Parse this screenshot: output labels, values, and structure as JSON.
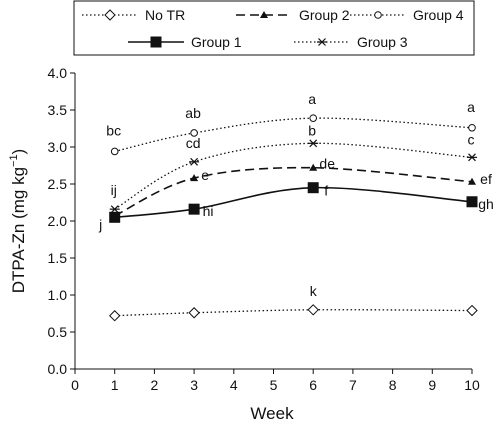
{
  "chart_data": {
    "type": "line",
    "xlabel": "Week",
    "ylabel_main": "DTPA-Zn (mg kg",
    "ylabel_sup": "−1",
    "ylabel_end": ")",
    "xlim": [
      0,
      10
    ],
    "ylim": [
      0.0,
      4.0
    ],
    "xticks": [
      0,
      1,
      2,
      3,
      4,
      5,
      6,
      7,
      8,
      9,
      10
    ],
    "yticks": [
      0.0,
      0.5,
      1.0,
      1.5,
      2.0,
      2.5,
      3.0,
      3.5,
      4.0
    ],
    "ytick_labels": [
      "0.0",
      "0.5",
      "1.0",
      "1.5",
      "2.0",
      "2.5",
      "3.0",
      "3.5",
      "4.0"
    ],
    "grid": false,
    "legend_position": "top",
    "x": [
      1,
      3,
      6,
      10
    ],
    "series": [
      {
        "key": "notr",
        "name": "No TR",
        "marker": "diamond-open",
        "dash": "dotted",
        "values": [
          0.72,
          0.76,
          0.8,
          0.79
        ],
        "labels": [
          "",
          "",
          "k",
          ""
        ]
      },
      {
        "key": "g1",
        "name": "Group 1",
        "marker": "square-filled",
        "dash": "solid",
        "values": [
          2.05,
          2.16,
          2.45,
          2.26
        ],
        "labels": [
          "j",
          "hi",
          "f",
          "gh"
        ]
      },
      {
        "key": "g2",
        "name": "Group 2",
        "marker": "triangle-filled",
        "dash": "dashed",
        "values": [
          2.07,
          2.58,
          2.72,
          2.53
        ],
        "labels": [
          "",
          "e",
          "de",
          "ef"
        ]
      },
      {
        "key": "g3",
        "name": "Group 3",
        "marker": "asterisk",
        "dash": "dotted",
        "values": [
          2.16,
          2.8,
          3.05,
          2.86
        ],
        "labels": [
          "ij",
          "cd",
          "b",
          "c"
        ]
      },
      {
        "key": "g4",
        "name": "Group 4",
        "marker": "circle-open",
        "dash": "dotted",
        "values": [
          2.94,
          3.19,
          3.39,
          3.26
        ],
        "labels": [
          "bc",
          "ab",
          "a",
          "a"
        ]
      }
    ]
  }
}
